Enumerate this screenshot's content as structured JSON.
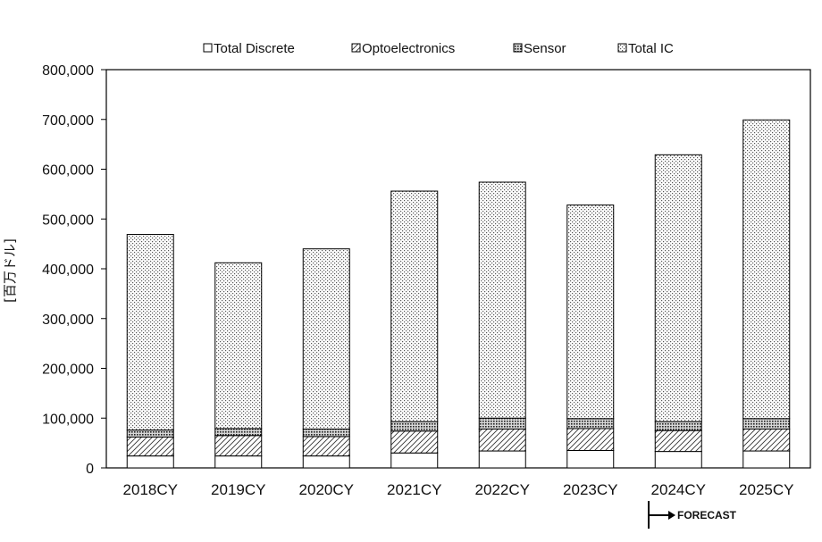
{
  "chart_data": {
    "type": "bar",
    "stacked": true,
    "title": "",
    "xlabel": "",
    "ylabel": "[百万ドル]",
    "categories": [
      "2018CY",
      "2019CY",
      "2020CY",
      "2021CY",
      "2022CY",
      "2023CY",
      "2024CY",
      "2025CY"
    ],
    "series": [
      {
        "name": "Total Discrete",
        "values": [
          24000,
          24000,
          24000,
          30000,
          34000,
          35000,
          33000,
          34000
        ],
        "pattern": "white"
      },
      {
        "name": "Optoelectronics",
        "values": [
          38000,
          41000,
          39000,
          44000,
          44000,
          44000,
          42000,
          44000
        ],
        "pattern": "diagonal-hatch"
      },
      {
        "name": "Sensor",
        "values": [
          14000,
          14000,
          15000,
          19000,
          22000,
          20000,
          18000,
          21000
        ],
        "pattern": "dense-dots"
      },
      {
        "name": "Total IC",
        "values": [
          393000,
          333000,
          362000,
          463000,
          474000,
          429000,
          536000,
          600000
        ],
        "pattern": "fine-dots"
      }
    ],
    "ylim": [
      0,
      800000
    ],
    "yticks": [
      0,
      100000,
      200000,
      300000,
      400000,
      500000,
      600000,
      700000,
      800000
    ],
    "ytick_labels": [
      "0",
      "100,000",
      "200,000",
      "300,000",
      "400,000",
      "500,000",
      "600,000",
      "700,000",
      "800,000"
    ],
    "grid": false,
    "legend_position": "top",
    "annotation": {
      "text": "FORECAST",
      "from_category": "2024CY"
    }
  }
}
